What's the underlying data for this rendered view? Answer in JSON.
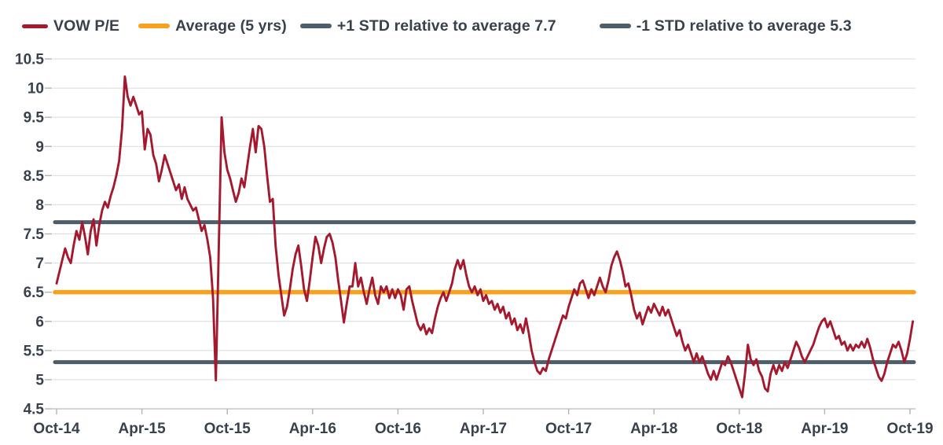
{
  "legend": {
    "items": [
      {
        "label": "VOW P/E",
        "color": "#A5192F",
        "swatch": "thin"
      },
      {
        "label": "Average (5 yrs)",
        "color": "#F8A11C",
        "swatch": "thick"
      },
      {
        "label": "+1 STD relative to average 7.7",
        "color": "#4E5D6A",
        "swatch": "thick"
      },
      {
        "label": "-1 STD relative to average 5.3",
        "color": "#4E5D6A",
        "swatch": "thick"
      }
    ]
  },
  "chart_data": {
    "type": "line",
    "title": "",
    "xlabel": "",
    "ylabel": "",
    "x_tick_labels": [
      "Oct-14",
      "Apr-15",
      "Oct-15",
      "Apr-16",
      "Oct-16",
      "Apr-17",
      "Oct-17",
      "Apr-18",
      "Oct-18",
      "Apr-19",
      "Oct-19"
    ],
    "x_tick_interval_months": 6,
    "y_ticks": [
      4.5,
      5,
      5.5,
      6,
      6.5,
      7,
      7.5,
      8,
      8.5,
      9,
      9.5,
      10,
      10.5
    ],
    "ylim": [
      4.5,
      10.5
    ],
    "grid": "horizontal",
    "legend_position": "top",
    "series": [
      {
        "name": "VOW P/E",
        "kind": "line",
        "color": "#A5192F",
        "t_start": 0,
        "t_step": 0.2,
        "values": [
          6.65,
          6.85,
          7.05,
          7.25,
          7.1,
          7.0,
          7.3,
          7.55,
          7.4,
          7.7,
          7.45,
          7.15,
          7.55,
          7.75,
          7.3,
          7.65,
          7.9,
          8.05,
          7.95,
          8.15,
          8.3,
          8.5,
          8.75,
          9.3,
          10.2,
          9.85,
          9.7,
          9.85,
          9.7,
          9.55,
          9.6,
          8.95,
          9.3,
          9.2,
          8.85,
          8.7,
          8.4,
          8.6,
          8.85,
          8.7,
          8.55,
          8.4,
          8.25,
          8.35,
          8.1,
          8.3,
          8.1,
          8.0,
          7.9,
          7.95,
          7.75,
          7.55,
          7.65,
          7.4,
          7.1,
          6.4,
          4.99,
          7.2,
          9.5,
          8.9,
          8.6,
          8.45,
          8.25,
          8.05,
          8.2,
          8.45,
          8.3,
          8.65,
          9.0,
          9.3,
          8.9,
          9.35,
          9.3,
          9.0,
          8.5,
          8.05,
          8.1,
          7.3,
          6.8,
          6.45,
          6.1,
          6.25,
          6.55,
          6.9,
          7.15,
          7.3,
          6.95,
          6.55,
          6.35,
          6.7,
          7.1,
          7.45,
          7.3,
          7.0,
          7.25,
          7.45,
          7.5,
          7.35,
          7.1,
          6.7,
          6.35,
          5.98,
          6.3,
          6.6,
          6.6,
          7.0,
          6.6,
          6.75,
          6.5,
          6.3,
          6.55,
          6.75,
          6.45,
          6.3,
          6.6,
          6.5,
          6.6,
          6.4,
          6.55,
          6.4,
          6.55,
          6.45,
          6.2,
          6.55,
          6.6,
          6.35,
          6.15,
          5.95,
          5.85,
          5.95,
          5.78,
          5.88,
          5.8,
          6.05,
          6.25,
          6.4,
          6.5,
          6.35,
          6.5,
          6.65,
          6.9,
          7.05,
          6.9,
          7.05,
          6.8,
          6.6,
          6.5,
          6.6,
          6.45,
          6.55,
          6.35,
          6.45,
          6.3,
          6.35,
          6.2,
          6.3,
          6.15,
          6.25,
          6.05,
          6.15,
          5.95,
          6.05,
          5.85,
          5.95,
          5.8,
          6.05,
          5.8,
          5.5,
          5.3,
          5.15,
          5.1,
          5.2,
          5.15,
          5.35,
          5.5,
          5.65,
          5.8,
          5.95,
          6.1,
          6.05,
          6.25,
          6.4,
          6.55,
          6.45,
          6.65,
          6.7,
          6.55,
          6.4,
          6.55,
          6.45,
          6.6,
          6.75,
          6.6,
          6.5,
          6.7,
          6.95,
          7.1,
          7.2,
          7.05,
          6.85,
          6.6,
          6.65,
          6.45,
          6.2,
          6.05,
          6.15,
          5.95,
          6.1,
          6.25,
          6.15,
          6.3,
          6.2,
          6.1,
          6.25,
          6.1,
          6.2,
          6.05,
          5.9,
          5.75,
          5.85,
          5.65,
          5.5,
          5.6,
          5.45,
          5.3,
          5.45,
          5.3,
          5.4,
          5.25,
          5.1,
          5.0,
          5.15,
          5.0,
          5.15,
          5.3,
          5.25,
          5.4,
          5.3,
          5.15,
          5.0,
          4.85,
          4.7,
          5.1,
          5.6,
          5.35,
          5.25,
          5.35,
          5.15,
          5.05,
          4.85,
          4.8,
          5.1,
          5.25,
          5.1,
          5.25,
          5.15,
          5.3,
          5.2,
          5.35,
          5.5,
          5.65,
          5.55,
          5.4,
          5.3,
          5.4,
          5.5,
          5.6,
          5.75,
          5.9,
          6.0,
          6.05,
          5.9,
          6.0,
          5.85,
          5.7,
          5.75,
          5.6,
          5.65,
          5.5,
          5.6,
          5.5,
          5.6,
          5.55,
          5.65,
          5.55,
          5.7,
          5.55,
          5.35,
          5.2,
          5.05,
          4.98,
          5.1,
          5.3,
          5.45,
          5.6,
          5.55,
          5.65,
          5.5,
          5.3,
          5.45,
          5.7,
          6.0
        ]
      },
      {
        "name": "Average (5 yrs)",
        "kind": "hline",
        "color": "#F8A11C",
        "value": 6.5
      },
      {
        "name": "+1 STD relative to average",
        "kind": "hline",
        "color": "#4E5D6A",
        "value": 7.7
      },
      {
        "name": "-1 STD relative to average",
        "kind": "hline",
        "color": "#4E5D6A",
        "value": 5.3
      }
    ]
  },
  "style": {
    "background": "#FFFFFF",
    "gridline_color": "#DBDBDB",
    "axis_line_color": "#C6C6C6",
    "tick_color": "#B3B3B3",
    "text_color": "#39424C"
  }
}
